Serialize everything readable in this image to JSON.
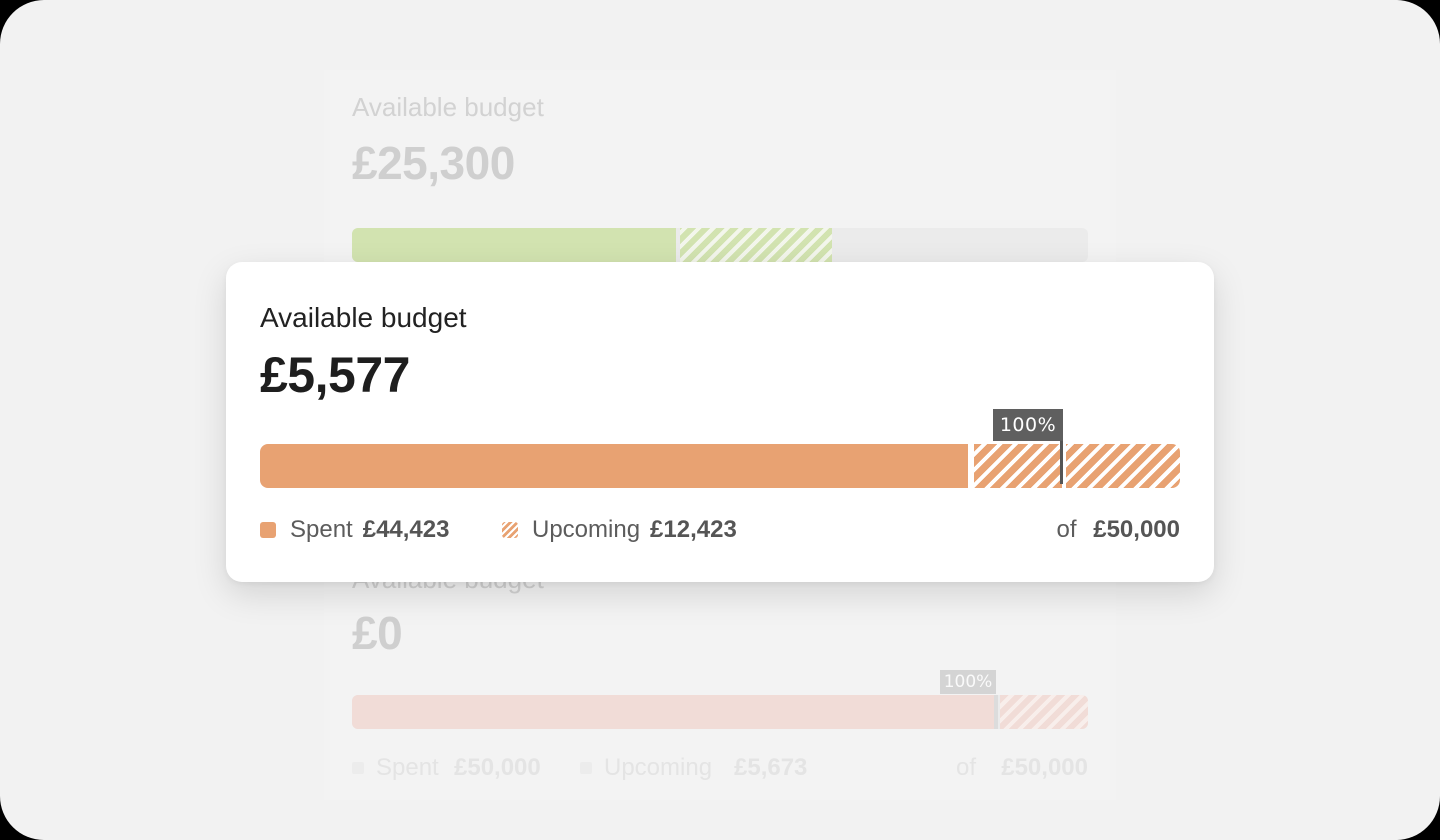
{
  "top_card": {
    "label": "Available budget",
    "amount": "£25,300"
  },
  "main_card": {
    "label": "Available budget",
    "amount": "£5,577",
    "marker": "100%",
    "legend": {
      "spent_label": "Spent",
      "spent_value": "£44,423",
      "upcoming_label": "Upcoming",
      "upcoming_value": "£12,423",
      "total_prefix": "of",
      "total_value": "£50,000"
    }
  },
  "bottom_card": {
    "label": "Available budget",
    "amount": "£0",
    "marker": "100%",
    "legend": {
      "spent_label": "Spent",
      "spent_value": "£50,000",
      "upcoming_label": "Upcoming",
      "upcoming_value": "£5,673",
      "total_prefix": "of",
      "total_value": "£50,000"
    }
  },
  "colors": {
    "spent": "#e8a272",
    "marker": "#5f5f5f",
    "green": "#d2e3b0",
    "over_budget": "#f1dcd7"
  }
}
